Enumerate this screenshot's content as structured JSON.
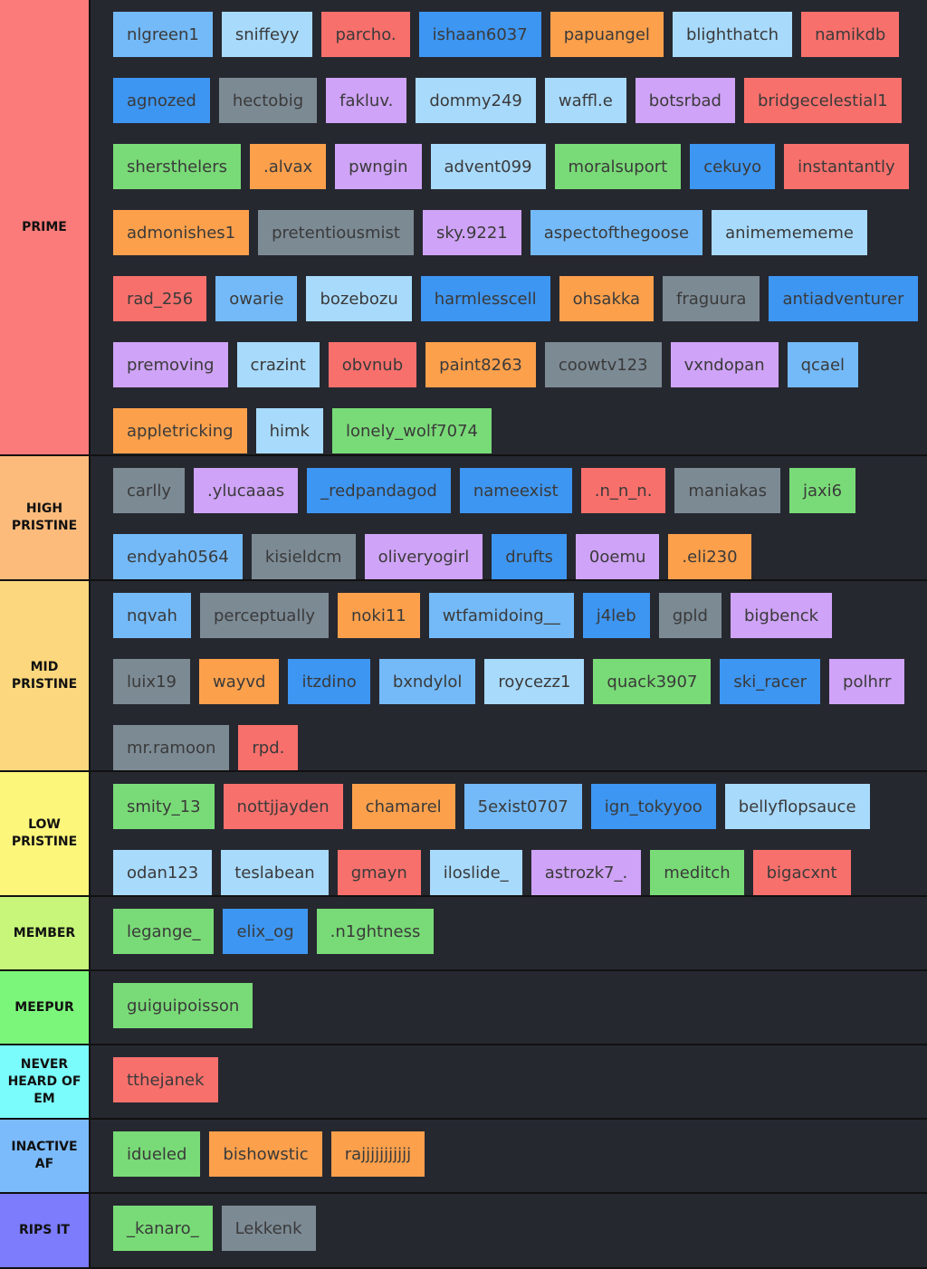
{
  "colors": {
    "light_blue": "#a8dafc",
    "blue": "#74baf8",
    "dark_blue": "#3d96f2",
    "orange": "#fca04c",
    "red": "#f8706c",
    "purple": "#cfa3f7",
    "green": "#79db77",
    "gray": "#7c8a94",
    "row_background": "#262830"
  },
  "tiers": [
    {
      "label": "PRIME",
      "color": "#fa7b79",
      "height": 504,
      "items": [
        {
          "name": "nlgreen1",
          "color": "blue"
        },
        {
          "name": "sniffeyy",
          "color": "light_blue"
        },
        {
          "name": "parcho.",
          "color": "red"
        },
        {
          "name": "ishaan6037",
          "color": "dark_blue"
        },
        {
          "name": "papuangel",
          "color": "orange"
        },
        {
          "name": "blighthatch",
          "color": "light_blue"
        },
        {
          "name": "namikdb",
          "color": "red"
        },
        {
          "name": "agnozed",
          "color": "dark_blue"
        },
        {
          "name": "hectobig",
          "color": "gray"
        },
        {
          "name": "fakluv.",
          "color": "purple"
        },
        {
          "name": "dommy249",
          "color": "light_blue"
        },
        {
          "name": "waffl.e",
          "color": "light_blue"
        },
        {
          "name": "botsrbad",
          "color": "purple"
        },
        {
          "name": "bridgecelestial1",
          "color": "red"
        },
        {
          "name": "shersthelers",
          "color": "green"
        },
        {
          "name": ".alvax",
          "color": "orange"
        },
        {
          "name": "pwngin",
          "color": "purple"
        },
        {
          "name": "advent099",
          "color": "light_blue"
        },
        {
          "name": "moralsuport",
          "color": "green"
        },
        {
          "name": "cekuyo",
          "color": "dark_blue"
        },
        {
          "name": "instantantly",
          "color": "red"
        },
        {
          "name": "admonishes1",
          "color": "orange"
        },
        {
          "name": "pretentiousmist",
          "color": "gray"
        },
        {
          "name": "sky.9221",
          "color": "purple"
        },
        {
          "name": "aspectofthegoose",
          "color": "blue"
        },
        {
          "name": "animemememe",
          "color": "light_blue"
        },
        {
          "name": "rad_256",
          "color": "red"
        },
        {
          "name": "owarie",
          "color": "blue"
        },
        {
          "name": "bozebozu",
          "color": "light_blue"
        },
        {
          "name": "harmlesscell",
          "color": "dark_blue"
        },
        {
          "name": "ohsakka",
          "color": "orange"
        },
        {
          "name": "fraguura",
          "color": "gray"
        },
        {
          "name": "antiadventurer",
          "color": "dark_blue"
        },
        {
          "name": "premoving",
          "color": "purple"
        },
        {
          "name": "crazint",
          "color": "light_blue"
        },
        {
          "name": "obvnub",
          "color": "red"
        },
        {
          "name": "paint8263",
          "color": "orange"
        },
        {
          "name": "coowtv123",
          "color": "gray"
        },
        {
          "name": "vxndopan",
          "color": "purple"
        },
        {
          "name": "qcael",
          "color": "blue"
        },
        {
          "name": "appletricking",
          "color": "orange"
        },
        {
          "name": "himk",
          "color": "light_blue"
        },
        {
          "name": "lonely_wolf7074",
          "color": "green"
        }
      ]
    },
    {
      "label": "HIGH\nPRISTINE",
      "color": "#fcbb7b",
      "height": 138,
      "items": [
        {
          "name": "carlly",
          "color": "gray"
        },
        {
          "name": ".ylucaaas",
          "color": "purple"
        },
        {
          "name": "_redpandagod",
          "color": "dark_blue"
        },
        {
          "name": "nameexist",
          "color": "dark_blue"
        },
        {
          "name": ".n_n_n.",
          "color": "red"
        },
        {
          "name": "maniakas",
          "color": "gray"
        },
        {
          "name": "jaxi6",
          "color": "green"
        },
        {
          "name": "endyah0564",
          "color": "blue"
        },
        {
          "name": "kisieldcm",
          "color": "gray"
        },
        {
          "name": "oliveryogirl",
          "color": "purple"
        },
        {
          "name": "drufts",
          "color": "dark_blue"
        },
        {
          "name": "0oemu",
          "color": "purple"
        },
        {
          "name": ".eli230",
          "color": "orange"
        }
      ]
    },
    {
      "label": "MID\nPRISTINE",
      "color": "#fcd77d",
      "height": 211,
      "items": [
        {
          "name": "nqvah",
          "color": "blue"
        },
        {
          "name": "perceptually",
          "color": "gray"
        },
        {
          "name": "noki11",
          "color": "orange"
        },
        {
          "name": "wtfamidoing__",
          "color": "blue"
        },
        {
          "name": "j4leb",
          "color": "dark_blue"
        },
        {
          "name": "gpld",
          "color": "gray"
        },
        {
          "name": "bigbenck",
          "color": "purple"
        },
        {
          "name": "luix19",
          "color": "gray"
        },
        {
          "name": "wayvd",
          "color": "orange"
        },
        {
          "name": "itzdino",
          "color": "dark_blue"
        },
        {
          "name": "bxndylol",
          "color": "blue"
        },
        {
          "name": "roycezz1",
          "color": "light_blue"
        },
        {
          "name": "quack3907",
          "color": "green"
        },
        {
          "name": "ski_racer",
          "color": "dark_blue"
        },
        {
          "name": "polhrr",
          "color": "purple"
        },
        {
          "name": "mr.ramoon",
          "color": "gray"
        },
        {
          "name": "rpd.",
          "color": "red"
        }
      ]
    },
    {
      "label": "LOW\nPRISTINE",
      "color": "#fcf67a",
      "height": 138,
      "items": [
        {
          "name": "smity_13",
          "color": "green"
        },
        {
          "name": "nottjjayden",
          "color": "red"
        },
        {
          "name": "chamarel",
          "color": "orange"
        },
        {
          "name": "5exist0707",
          "color": "blue"
        },
        {
          "name": "ign_tokyyoo",
          "color": "dark_blue"
        },
        {
          "name": "bellyflopsauce",
          "color": "light_blue"
        },
        {
          "name": "odan123",
          "color": "light_blue"
        },
        {
          "name": "teslabean",
          "color": "light_blue"
        },
        {
          "name": "gmayn",
          "color": "red"
        },
        {
          "name": "iloslide_",
          "color": "light_blue"
        },
        {
          "name": "astrozk7_.",
          "color": "purple"
        },
        {
          "name": "meditch",
          "color": "green"
        },
        {
          "name": "bigacxnt",
          "color": "red"
        }
      ]
    },
    {
      "label": "MEMBER",
      "color": "#c8f67a",
      "height": 82,
      "items": [
        {
          "name": "legange_",
          "color": "green"
        },
        {
          "name": "elix_og",
          "color": "dark_blue"
        },
        {
          "name": ".n1ghtness",
          "color": "green"
        }
      ]
    },
    {
      "label": "MEEPUR",
      "color": "#7cf67a",
      "height": 82,
      "items": [
        {
          "name": "guiguipoisson",
          "color": "green"
        }
      ]
    },
    {
      "label": "NEVER\nHEARD OF\nEM",
      "color": "#7bfcfc",
      "height": 82,
      "items": [
        {
          "name": "tthejanek",
          "color": "red"
        }
      ]
    },
    {
      "label": "INACTIVE\nAF",
      "color": "#7bbbfc",
      "height": 82,
      "items": [
        {
          "name": "idueled",
          "color": "green"
        },
        {
          "name": "bishowstic",
          "color": "orange"
        },
        {
          "name": "rajjjjjjjjjjj",
          "color": "orange"
        }
      ]
    },
    {
      "label": "RIPS IT",
      "color": "#7c7cfc",
      "height": 83,
      "items": [
        {
          "name": "_kanaro_",
          "color": "green"
        },
        {
          "name": "Lekkenk",
          "color": "gray"
        }
      ]
    }
  ]
}
